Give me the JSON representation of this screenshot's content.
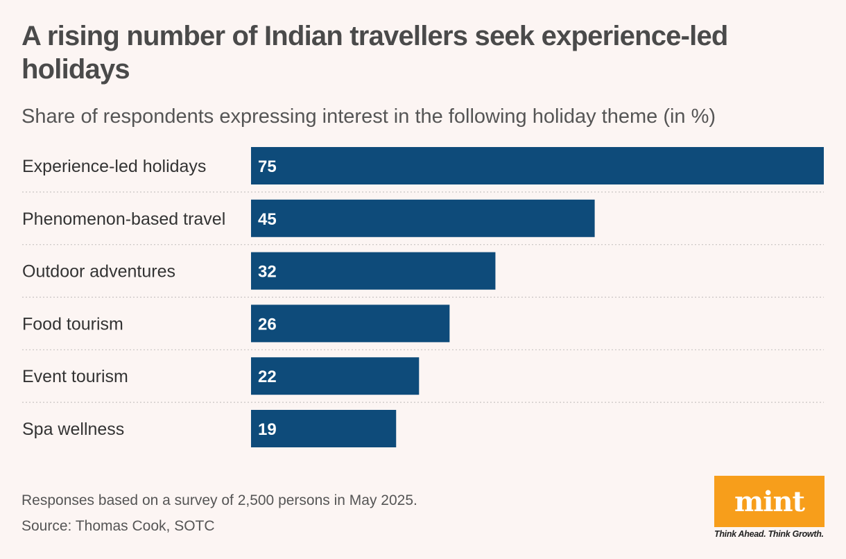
{
  "header": {
    "title": "A rising number of Indian travellers seek experience-led holidays",
    "subtitle": "Share of respondents expressing interest in the following holiday theme (in %)"
  },
  "footer": {
    "note": "Responses based on a survey of 2,500 persons in May 2025.",
    "source": "Source: Thomas Cook, SOTC"
  },
  "logo": {
    "word": "mint",
    "tagline": "Think Ahead. Think Growth.",
    "color": "#f79e1b"
  },
  "colors": {
    "bar": "#0e4b7a",
    "bar_label": "#ffffff",
    "category_label": "#333333",
    "separator": "#c8c4c2"
  },
  "chart_data": {
    "type": "bar",
    "orientation": "horizontal",
    "categories": [
      "Experience-led holidays",
      "Phenomenon-based travel",
      "Outdoor adventures",
      "Food tourism",
      "Event tourism",
      "Spa wellness"
    ],
    "values": [
      75,
      45,
      32,
      26,
      22,
      19
    ],
    "data_labels": [
      "75",
      "45",
      "32",
      "26",
      "22",
      "19"
    ],
    "xlim": [
      0,
      75
    ],
    "grid": false,
    "legend": "none"
  }
}
